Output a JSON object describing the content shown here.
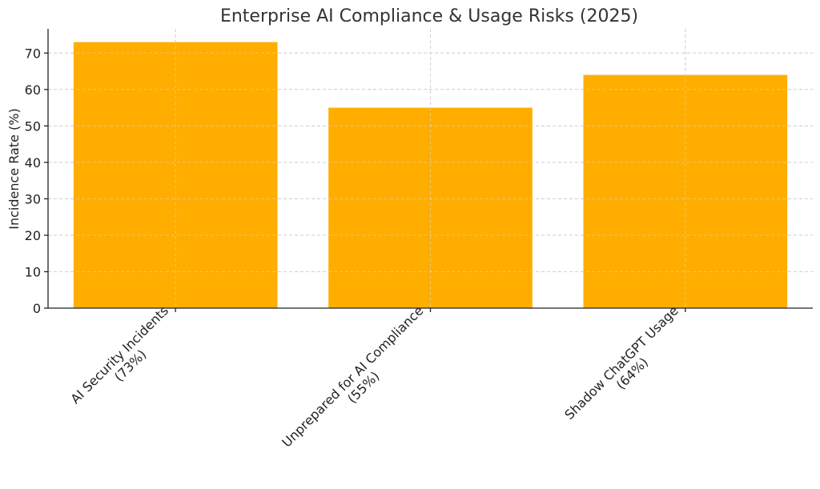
{
  "chart_data": {
    "type": "bar",
    "title": "Enterprise AI Compliance & Usage Risks (2025)",
    "xlabel": "",
    "ylabel": "Incidence Rate (%)",
    "categories": [
      [
        "AI Security Incidents",
        "(73%)"
      ],
      [
        "Unprepared for AI Compliance",
        "(55%)"
      ],
      [
        "Shadow ChatGPT Usage",
        "(64%)"
      ]
    ],
    "values": [
      73,
      55,
      64
    ],
    "ylim": [
      0,
      76.65
    ],
    "yticks": [
      0,
      10,
      20,
      30,
      40,
      50,
      60,
      70
    ],
    "grid": true,
    "bar_color": "#FFAE00",
    "x_tick_rotation": -45
  }
}
